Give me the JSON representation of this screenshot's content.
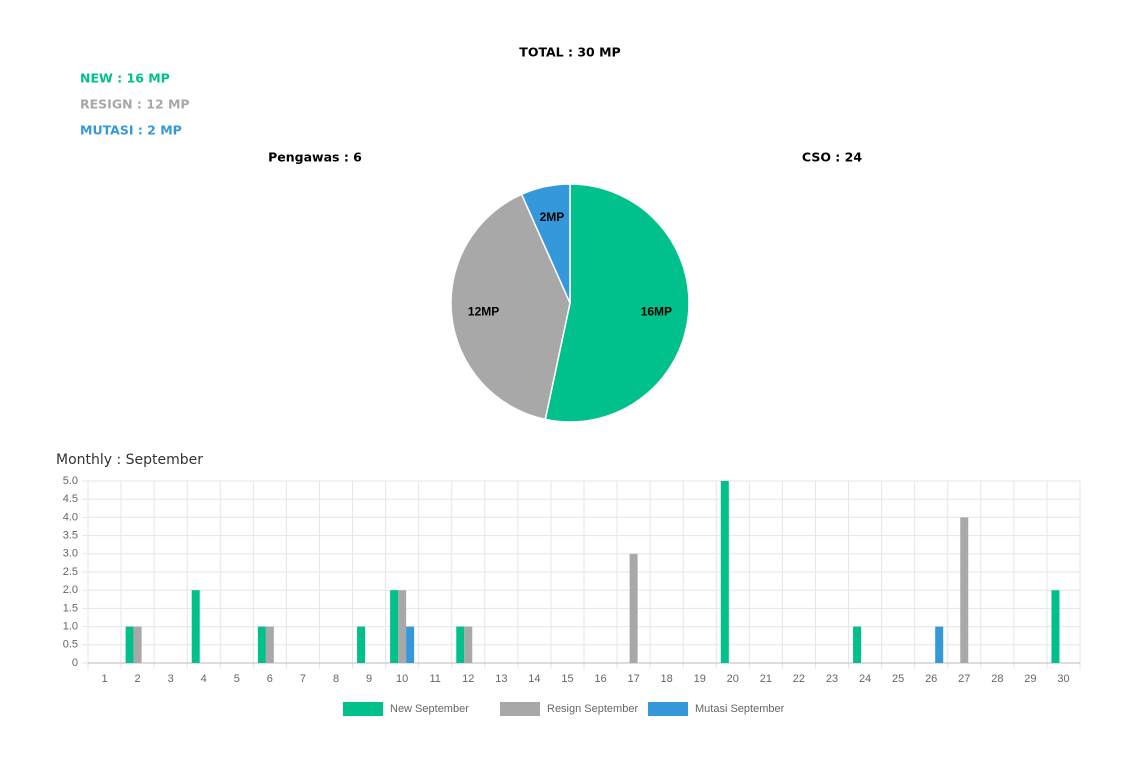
{
  "summary": {
    "total": "TOTAL : 30 MP",
    "new": "NEW : 16 MP",
    "resign": "RESIGN : 12 MP",
    "mutasi": "MUTASI : 2 MP",
    "pengawas": "Pengawas : 6",
    "cso": "CSO : 24"
  },
  "chart_data": [
    {
      "type": "pie",
      "categories": [
        "New",
        "Resign",
        "Mutasi"
      ],
      "values": [
        16,
        12,
        2
      ],
      "value_labels": [
        "16MP",
        "12MP",
        "2MP"
      ],
      "colors": [
        "#00c08b",
        "#a8a8a8",
        "#3498db"
      ]
    },
    {
      "type": "bar",
      "title": "Monthly : September",
      "categories": [
        "1",
        "2",
        "3",
        "4",
        "5",
        "6",
        "7",
        "8",
        "9",
        "10",
        "11",
        "12",
        "13",
        "14",
        "15",
        "16",
        "17",
        "18",
        "19",
        "20",
        "21",
        "22",
        "23",
        "24",
        "25",
        "26",
        "27",
        "28",
        "29",
        "30"
      ],
      "series": [
        {
          "name": "New September",
          "color": "#00c08b",
          "values": [
            0,
            1,
            0,
            2,
            0,
            1,
            0,
            0,
            1,
            2,
            0,
            1,
            0,
            0,
            0,
            0,
            0,
            0,
            0,
            5,
            0,
            0,
            0,
            1,
            0,
            0,
            0,
            0,
            0,
            2
          ]
        },
        {
          "name": "Resign September",
          "color": "#a8a8a8",
          "values": [
            0,
            1,
            0,
            0,
            0,
            1,
            0,
            0,
            0,
            2,
            0,
            1,
            0,
            0,
            0,
            0,
            3,
            0,
            0,
            0,
            0,
            0,
            0,
            0,
            0,
            0,
            4,
            0,
            0,
            0
          ]
        },
        {
          "name": "Mutasi September",
          "color": "#3498db",
          "values": [
            0,
            0,
            0,
            0,
            0,
            0,
            0,
            0,
            0,
            1,
            0,
            0,
            0,
            0,
            0,
            0,
            0,
            0,
            0,
            0,
            0,
            0,
            0,
            0,
            0,
            1,
            0,
            0,
            0,
            0
          ]
        }
      ],
      "ylim": [
        0,
        5
      ],
      "yticks": [
        0,
        0.5,
        {
          "value": 1,
          "label": "1.0"
        },
        1.5,
        {
          "value": 2,
          "label": "2.0"
        },
        2.5,
        {
          "value": 3,
          "label": "3.0"
        },
        3.5,
        {
          "value": 4,
          "label": "4.0"
        },
        4.5,
        {
          "value": 5,
          "label": "5.0"
        }
      ],
      "grid": true,
      "legend": "bottom"
    }
  ]
}
